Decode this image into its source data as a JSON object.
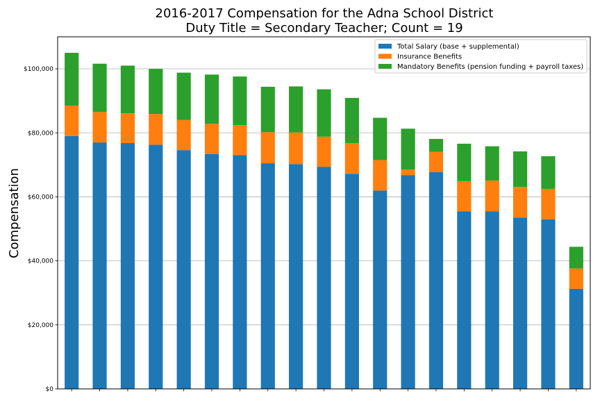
{
  "chart_data": {
    "type": "bar",
    "stacked": true,
    "title_lines": [
      "2016-2017 Compensation for the Adna School District",
      "Duty Title = Secondary Teacher; Count = 19"
    ],
    "xlabel": "",
    "ylabel": "Compensation",
    "ylim": [
      0,
      110000
    ],
    "yticks": [
      0,
      20000,
      40000,
      60000,
      80000,
      100000
    ],
    "ytick_labels": [
      "$0",
      "$20,000",
      "$40,000",
      "$60,000",
      "$80,000",
      "$100,000"
    ],
    "grid": "horizontal",
    "legend_position": "top-right",
    "categories": [
      "",
      "",
      "",
      "",
      "",
      "",
      "",
      "",
      "",
      "",
      "",
      "",
      "",
      "",
      "",
      "",
      "",
      "",
      ""
    ],
    "series": [
      {
        "name": "Total Salary (base + supplemental)",
        "color": "#1f77b4",
        "values": [
          79000,
          77000,
          76800,
          76300,
          74600,
          73400,
          73000,
          70500,
          70200,
          69400,
          67200,
          62000,
          66800,
          67700,
          55500,
          55500,
          53500,
          53000,
          31300
        ]
      },
      {
        "name": "Insurance Benefits",
        "color": "#ff7f0e",
        "values": [
          9500,
          9500,
          9300,
          9600,
          9400,
          9400,
          9400,
          9700,
          9900,
          9400,
          9600,
          9500,
          1700,
          6400,
          9400,
          9600,
          9600,
          9500,
          6300
        ]
      },
      {
        "name": "Mandatory Benefits (pension funding + payroll taxes)",
        "color": "#2ca02c",
        "values": [
          16500,
          15100,
          14900,
          14100,
          14800,
          15400,
          15200,
          14200,
          14400,
          14800,
          14100,
          13200,
          12800,
          4000,
          11700,
          10700,
          11100,
          10200,
          6800
        ]
      }
    ]
  }
}
